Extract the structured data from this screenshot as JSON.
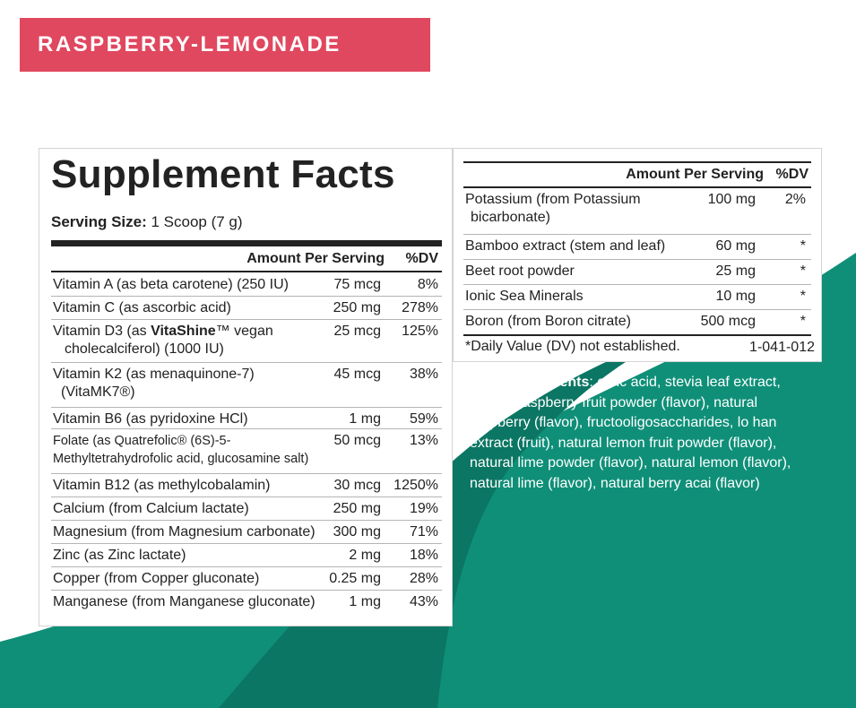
{
  "colors": {
    "teal": "#0f8f78",
    "teal_dark": "#0b7663",
    "banner": "#e0485f"
  },
  "flavor": "RASPBERRY-LEMONADE",
  "title": "Supplement Facts",
  "serving_label": "Serving Size:",
  "serving_value": " 1 Scoop (7 g)",
  "left_table": {
    "header_amount": "Amount Per Serving",
    "header_dv": "%DV",
    "rows": [
      {
        "name": "Vitamin A (as beta carotene) (250 IU)",
        "amount": "75 mcg",
        "dv": "8%"
      },
      {
        "name": "Vitamin C (as ascorbic acid)",
        "amount": "250 mg",
        "dv": "278%"
      },
      {
        "name_pre": "Vitamin D3 (as ",
        "name_bold": "VitaShine",
        "name_post": "™ vegan",
        "name_line2": "cholecalciferol) (1000 IU)",
        "amount": "25 mcg",
        "dv": "125%"
      },
      {
        "name": "Vitamin K2 (as menaquinone-7)",
        "name_line2": "(VitaMK7®)",
        "amount": "45 mcg",
        "dv": "38%"
      },
      {
        "name": "Vitamin B6 (as pyridoxine HCl)",
        "amount": "1 mg",
        "dv": "59%"
      },
      {
        "name": "Folate (as Quatrefolic® (6S)-5-",
        "name_line2": "Methyltetrahydrofolic acid, glucosamine salt)",
        "amount": "50 mcg",
        "dv": "13%"
      },
      {
        "name": "Vitamin B12 (as methylcobalamin)",
        "amount": "30 mcg",
        "dv": "1250%"
      },
      {
        "name": "Calcium (from Calcium lactate)",
        "amount": "250 mg",
        "dv": "19%"
      },
      {
        "name": "Magnesium (from Magnesium carbonate)",
        "amount": "300 mg",
        "dv": "71%"
      },
      {
        "name": "Zinc (as Zinc lactate)",
        "amount": "2 mg",
        "dv": "18%"
      },
      {
        "name": "Copper (from Copper gluconate)",
        "amount": "0.25 mg",
        "dv": "28%"
      },
      {
        "name": "Manganese (from Manganese gluconate)",
        "amount": "1 mg",
        "dv": "43%"
      }
    ]
  },
  "right_table": {
    "header_amount": "Amount Per Serving",
    "header_dv": "%DV",
    "rows": [
      {
        "name": "Potassium (from Potassium",
        "name_line2": "bicarbonate)",
        "amount": "100 mg",
        "dv": "2%"
      },
      {
        "name": "Bamboo extract (stem and leaf)",
        "amount": "60 mg",
        "dv": "*"
      },
      {
        "name": "Beet root powder",
        "amount": "25 mg",
        "dv": "*"
      },
      {
        "name": "Ionic Sea Minerals",
        "amount": "10 mg",
        "dv": "*"
      },
      {
        "name": "Boron (from Boron citrate)",
        "amount": "500 mcg",
        "dv": "*"
      }
    ],
    "footnote": "*Daily Value (DV) not established.",
    "code": "1-041-012"
  },
  "other_ingredients": {
    "label": "Other Ingredients",
    "text": ": citric acid, stevia leaf extract, natural raspberry fruit powder (flavor), natural raspberry (flavor), fructooligosaccharides, lo han extract (fruit), natural lemon fruit powder (flavor), natural lime powder (flavor), natural lemon (flavor), natural lime (flavor), natural berry acai (flavor)"
  }
}
